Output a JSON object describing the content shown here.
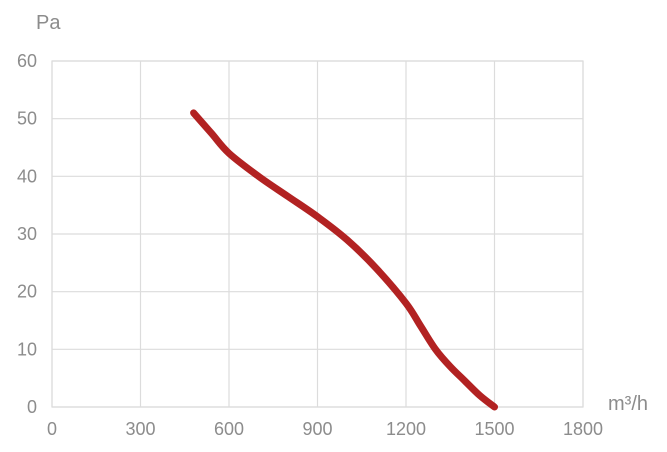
{
  "chart_data": {
    "type": "line",
    "title": "",
    "xlabel": "m³/h",
    "ylabel": "Pa",
    "xlim": [
      0,
      1800
    ],
    "ylim": [
      0,
      60
    ],
    "x_ticks": [
      0,
      300,
      600,
      900,
      1200,
      1500,
      1800
    ],
    "y_ticks": [
      0,
      10,
      20,
      30,
      40,
      50,
      60
    ],
    "grid": true,
    "legend": "none",
    "series": [
      {
        "color": "#b22222",
        "x": [
          480,
          540,
          600,
          700,
          800,
          900,
          1000,
          1100,
          1200,
          1250,
          1300,
          1350,
          1400,
          1450,
          1500
        ],
        "y": [
          51,
          47.5,
          44,
          40,
          36.5,
          33,
          29,
          24,
          18,
          14,
          10,
          7,
          4.5,
          2,
          0
        ]
      }
    ]
  }
}
